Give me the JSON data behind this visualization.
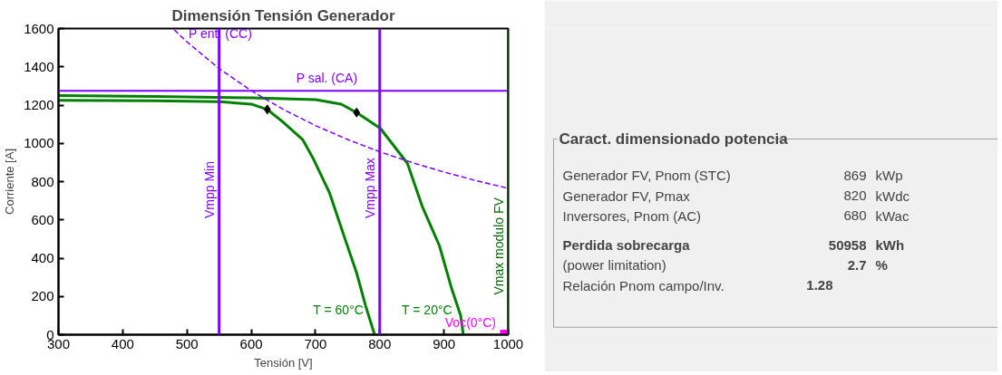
{
  "chart_data": [
    {
      "type": "line",
      "title": "Dimensión Tensión Generador",
      "xlabel": "Tensión [V]",
      "ylabel": "Corriente [A]",
      "xlim": [
        300,
        1000
      ],
      "ylim": [
        0,
        1600
      ],
      "xticks": [
        300,
        400,
        500,
        600,
        700,
        800,
        900,
        1000
      ],
      "yticks": [
        0,
        200,
        400,
        600,
        800,
        1000,
        1200,
        1400,
        1600
      ],
      "grid": false,
      "series": [
        {
          "name": "T = 60°C",
          "color": "#008000",
          "type": "line",
          "x": [
            300,
            450,
            550,
            600,
            625,
            650,
            680,
            697,
            722,
            746,
            764,
            778,
            792
          ],
          "values": [
            1225,
            1222,
            1218,
            1205,
            1177,
            1110,
            1020,
            917,
            740,
            500,
            323,
            151,
            0
          ]
        },
        {
          "name": "T = 20°C",
          "color": "#008000",
          "type": "line",
          "x": [
            300,
            450,
            600,
            700,
            740,
            764,
            801,
            843,
            866,
            893,
            912,
            926,
            930
          ],
          "values": [
            1250,
            1245,
            1238,
            1228,
            1205,
            1161,
            1078,
            896,
            672,
            464,
            240,
            99,
            0
          ]
        },
        {
          "name": "P ent. (CC)",
          "color": "#8000ff",
          "type": "line",
          "line_style": "dashed",
          "x": [
            480,
            500,
            550,
            600,
            650,
            700,
            750,
            800,
            850,
            900,
            950,
            1000
          ],
          "values": [
            1594,
            1530,
            1391,
            1275,
            1177,
            1093,
            1020,
            956,
            900,
            850,
            805,
            765
          ]
        },
        {
          "color": "#000000",
          "type": "scatter",
          "marker": "diamond",
          "x": [
            625,
            764
          ],
          "values": [
            1177,
            1161
          ]
        },
        {
          "name": "Voc(0°C)",
          "color": "#ff00ff",
          "type": "scatter",
          "marker": "square",
          "x": [
            995
          ],
          "values": [
            0
          ]
        }
      ],
      "ref_lines": [
        {
          "axis": "y",
          "value": 1275,
          "label": "P sal. (CA)",
          "color": "#8000ff"
        },
        {
          "axis": "x",
          "value": 550,
          "label": "Vmpp Min",
          "color": "#8000ff"
        },
        {
          "axis": "x",
          "value": 800,
          "label": "Vmpp Max",
          "color": "#8000ff"
        },
        {
          "axis": "x",
          "value": 1000,
          "label": "Vmax modulo FV",
          "color": "#006400"
        }
      ]
    },
    {
      "type": "other",
      "title": "Caract. dimensionado potencia",
      "annotations": [
        "Generador FV, Pnom (STC)",
        "869",
        "kWp",
        "Generador FV, Pmax",
        "820",
        "kWdc",
        "Inversores, Pnom (AC)",
        "680",
        "kWac",
        "Perdida sobrecarga",
        "50958",
        "kWh",
        "(power limitation)",
        "2.7",
        "%",
        "Relación Pnom campo/Inv.",
        "1.28"
      ]
    }
  ]
}
